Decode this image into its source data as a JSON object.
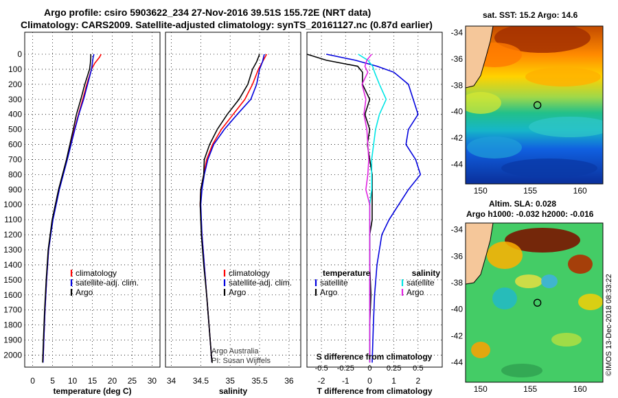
{
  "title_line1": "Argo profile: csiro 5903622_234 27-Nov-2016 39.51S 155.72E (NRT data)",
  "title_line2": "Climatology: CARS2009. Satellite-adjusted climatology: synTS_20161127.nc (0.87d earlier)",
  "map_top_title": "sat. SST: 15.2 Argo: 14.6",
  "map_bottom_title1": "Altim. SLA: 0.028",
  "map_bottom_title2": "Argo h1000: -0.032 h2000: -0.016",
  "credit": "©IMOS 13-Dec-2018 08:33:22",
  "attribution1": "Argo Australia",
  "attribution2": "PI: Susan Wijffels",
  "colors": {
    "climatology": "#ff0000",
    "satellite": "#0000dd",
    "argo": "#000000",
    "sat_salinity": "#00e5e5",
    "argo_salinity": "#e020e0"
  },
  "chart_data": [
    {
      "type": "line",
      "xlabel": "temperature (deg C)",
      "ylabel": "",
      "xlim": [
        -2,
        32
      ],
      "ylim": [
        2080,
        0
      ],
      "xticks": [
        0,
        5,
        10,
        15,
        20,
        25,
        30
      ],
      "yticks": [
        0,
        100,
        200,
        300,
        400,
        500,
        600,
        700,
        800,
        900,
        1000,
        1100,
        1200,
        1300,
        1400,
        1500,
        1600,
        1700,
        1800,
        1900,
        2000
      ],
      "legend": [
        "climatology",
        "satellite-adj. clim.",
        "Argo"
      ],
      "series": [
        {
          "name": "climatology",
          "color": "#ff0000",
          "depth": [
            0,
            20,
            60,
            100,
            200,
            300,
            400,
            500,
            700,
            900,
            1100,
            1300,
            1500,
            1700,
            1900,
            2050
          ],
          "values": [
            17.2,
            16.8,
            15.6,
            14.8,
            13.6,
            12.6,
            11.5,
            10.5,
            8.6,
            6.6,
            5.0,
            4.0,
            3.5,
            3.1,
            2.8,
            2.6
          ]
        },
        {
          "name": "satellite-adj. clim.",
          "color": "#0000dd",
          "depth": [
            0,
            20,
            60,
            100,
            200,
            300,
            400,
            500,
            700,
            900,
            1100,
            1300,
            1500,
            1700,
            1900,
            2050
          ],
          "values": [
            15.4,
            15.2,
            15.0,
            14.8,
            13.8,
            12.8,
            11.6,
            10.6,
            8.7,
            6.7,
            5.1,
            4.0,
            3.5,
            3.1,
            2.8,
            2.6
          ]
        },
        {
          "name": "Argo",
          "color": "#000000",
          "depth": [
            0,
            20,
            60,
            100,
            200,
            300,
            400,
            500,
            700,
            900,
            1100,
            1300,
            1500,
            1700,
            1900,
            2050
          ],
          "values": [
            14.6,
            14.6,
            14.5,
            14.3,
            13.1,
            12.1,
            11.0,
            10.2,
            8.5,
            6.5,
            4.9,
            3.9,
            3.4,
            3.0,
            2.7,
            2.5
          ]
        }
      ]
    },
    {
      "type": "line",
      "xlabel": "salinity",
      "xlim": [
        33.9,
        36.2
      ],
      "ylim": [
        2080,
        0
      ],
      "xticks": [
        34,
        34.5,
        35,
        35.5,
        36
      ],
      "legend": [
        "climatology",
        "satellite-adj. clim.",
        "Argo"
      ],
      "series": [
        {
          "name": "climatology",
          "color": "#ff0000",
          "depth": [
            0,
            50,
            100,
            200,
            300,
            400,
            500,
            600,
            700,
            800,
            900,
            1000,
            1200,
            1400,
            1600,
            1800,
            2000,
            2050
          ],
          "values": [
            35.62,
            35.55,
            35.48,
            35.38,
            35.25,
            35.05,
            34.85,
            34.7,
            34.6,
            34.55,
            34.5,
            34.49,
            34.52,
            34.56,
            34.6,
            34.64,
            34.68,
            34.69
          ]
        },
        {
          "name": "satellite-adj. clim.",
          "color": "#0000dd",
          "depth": [
            0,
            50,
            100,
            200,
            300,
            400,
            500,
            600,
            700,
            800,
            900,
            1000,
            1200,
            1400,
            1600,
            1800,
            2000,
            2050
          ],
          "values": [
            35.58,
            35.55,
            35.5,
            35.45,
            35.35,
            35.12,
            34.9,
            34.72,
            34.62,
            34.56,
            34.52,
            34.5,
            34.52,
            34.56,
            34.6,
            34.64,
            34.68,
            34.69
          ]
        },
        {
          "name": "Argo",
          "color": "#000000",
          "depth": [
            0,
            50,
            100,
            200,
            300,
            400,
            500,
            600,
            700,
            800,
            900,
            1000,
            1200,
            1400,
            1600,
            1800,
            2000,
            2050
          ],
          "values": [
            35.5,
            35.45,
            35.38,
            35.3,
            35.15,
            34.95,
            34.78,
            34.65,
            34.56,
            34.55,
            34.5,
            34.49,
            34.51,
            34.55,
            34.6,
            34.64,
            34.68,
            34.69
          ]
        }
      ]
    },
    {
      "type": "line",
      "xlabel": "T difference from climatology",
      "xlabel_top": "S difference from climatology",
      "xlim": [
        -2.6,
        3.0
      ],
      "ylim": [
        2080,
        0
      ],
      "xticks": [
        -2,
        -1,
        0,
        1,
        2
      ],
      "xticks_top": [
        "-0.5",
        "-0.25",
        "0",
        "0.25",
        "0.5"
      ],
      "legend_temperature_title": "temperature",
      "legend_salinity_title": "salinity",
      "legend_temperature": [
        "satellite",
        "Argo"
      ],
      "legend_salinity": [
        "satellite",
        "Argo"
      ],
      "series": [
        {
          "name": "temperature satellite",
          "color": "#0000dd",
          "depth": [
            0,
            40,
            80,
            120,
            200,
            300,
            400,
            500,
            600,
            700,
            800,
            900,
            1000,
            1100,
            1200,
            1400,
            1600,
            1800,
            2050
          ],
          "values": [
            -1.8,
            -0.6,
            0.3,
            1.0,
            1.6,
            1.8,
            2.0,
            1.6,
            1.5,
            1.9,
            2.1,
            1.6,
            1.2,
            0.8,
            0.5,
            0.3,
            0.2,
            0.15,
            0.1
          ]
        },
        {
          "name": "temperature Argo",
          "color": "#000000",
          "depth": [
            0,
            40,
            80,
            120,
            200,
            300,
            400,
            500,
            600,
            700,
            800,
            900,
            1000,
            1100,
            1200,
            1400,
            1600,
            1800,
            2050
          ],
          "values": [
            -2.6,
            -1.8,
            -0.5,
            -0.3,
            -0.3,
            0.0,
            -0.2,
            0.0,
            -0.1,
            0.0,
            0.1,
            0.1,
            0.1,
            0.1,
            0.0,
            0.0,
            0.05,
            0.0,
            0.0
          ]
        },
        {
          "name": "salinity satellite",
          "color": "#00e5e5",
          "depth": [
            0,
            40,
            80,
            120,
            200,
            300,
            400,
            500,
            600,
            700,
            800,
            900,
            1000,
            1200,
            1400,
            1600,
            1800,
            2050
          ],
          "values": [
            -0.12,
            -0.02,
            0.03,
            0.05,
            0.1,
            0.17,
            0.1,
            0.06,
            0.04,
            0.02,
            0.02,
            0.02,
            0.0,
            0.0,
            0.0,
            0.0,
            0.0,
            0.0
          ]
        },
        {
          "name": "salinity Argo",
          "color": "#e020e0",
          "depth": [
            0,
            40,
            80,
            120,
            200,
            300,
            400,
            500,
            600,
            700,
            800,
            900,
            1000,
            1100,
            1200,
            1400,
            1600,
            1800,
            2050
          ],
          "values": [
            0.02,
            -0.03,
            -0.05,
            -0.02,
            -0.08,
            -0.04,
            -0.06,
            -0.03,
            -0.02,
            -0.01,
            -0.02,
            -0.04,
            0.0,
            0.0,
            0.0,
            0.0,
            0.0,
            0.0,
            0.0
          ]
        }
      ]
    },
    {
      "type": "heatmap",
      "title": "sat. SST: 15.2 Argo: 14.6",
      "xticks": [
        150,
        155,
        160
      ],
      "yticks": [
        -34,
        -36,
        -38,
        -40,
        -42,
        -44
      ],
      "xlim": [
        148.5,
        162.3
      ],
      "ylim": [
        -45.5,
        -33.5
      ],
      "argo_marker": [
        155.72,
        -39.51
      ]
    },
    {
      "type": "heatmap",
      "title": "Altim. SLA: 0.028",
      "xticks": [
        150,
        155,
        160
      ],
      "yticks": [
        -34,
        -36,
        -38,
        -40,
        -42,
        -44
      ],
      "xlim": [
        148.5,
        162.3
      ],
      "ylim": [
        -45.5,
        -33.5
      ],
      "argo_marker": [
        155.72,
        -39.51
      ]
    }
  ]
}
